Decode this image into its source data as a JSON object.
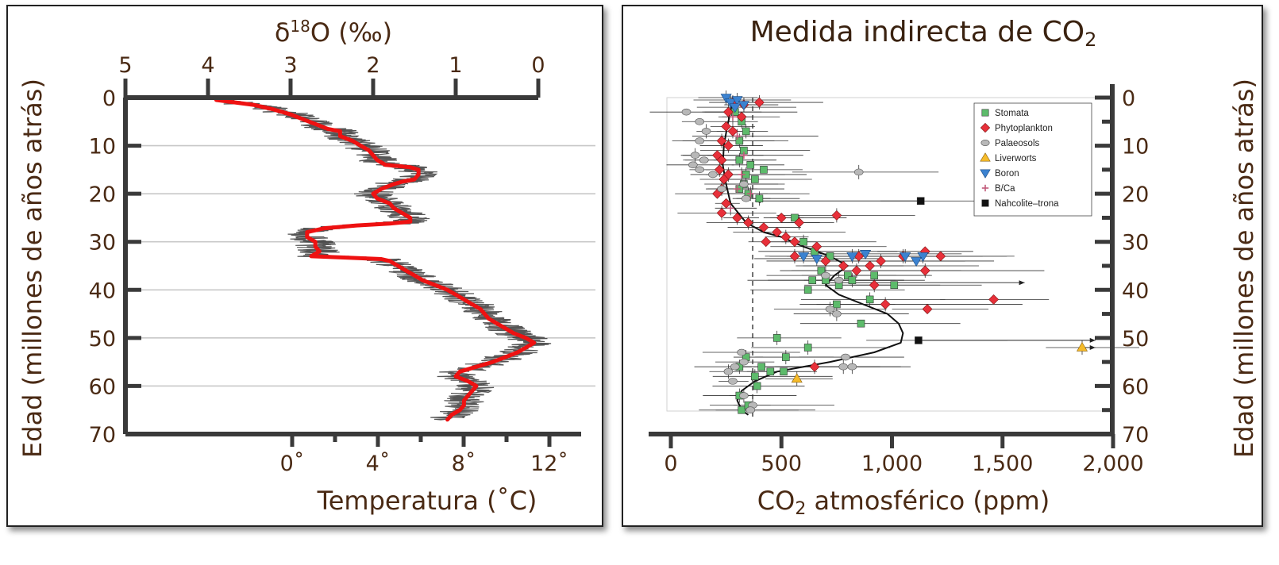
{
  "chart_data": [
    {
      "type": "line",
      "title": "",
      "top_axis": {
        "label": "δ18O (‰)",
        "label_base": "δ",
        "label_sup": "18",
        "label_rest": "O (‰)",
        "ticks": [
          5,
          4,
          3,
          2,
          1,
          0
        ],
        "tick_labels": [
          "5",
          "4",
          "3",
          "2",
          "1",
          "0"
        ],
        "range": [
          5,
          0
        ]
      },
      "bottom_axis": {
        "label": "Temperatura (˚C)",
        "ticks": [
          0,
          4,
          8,
          12
        ],
        "tick_labels": [
          "0˚",
          "4˚",
          "8˚",
          "12˚"
        ],
        "minor_ticks": [
          2,
          6,
          10
        ]
      },
      "y_axis": {
        "label": "Edad (millones de años atrás)",
        "ticks": [
          0,
          10,
          20,
          30,
          40,
          50,
          60,
          70
        ],
        "tick_labels": [
          "0",
          "10",
          "20",
          "30",
          "40",
          "50",
          "60",
          "70"
        ],
        "range": [
          0,
          70
        ],
        "inverted": true
      },
      "grid": "horizontal",
      "series": [
        {
          "color": "#ee1111",
          "note_points": "x = δ18O (‰), y = Edad (Ma), smoothed curve",
          "points": [
            [
              3.9,
              0.5
            ],
            [
              3.45,
              1.5
            ],
            [
              3.2,
              2.5
            ],
            [
              3.0,
              3.5
            ],
            [
              2.85,
              4.5
            ],
            [
              2.7,
              5.5
            ],
            [
              2.55,
              6.5
            ],
            [
              2.4,
              7
            ],
            [
              2.4,
              8
            ],
            [
              2.25,
              9
            ],
            [
              2.15,
              10
            ],
            [
              2.05,
              11
            ],
            [
              2.0,
              12
            ],
            [
              1.95,
              13
            ],
            [
              1.85,
              14
            ],
            [
              1.55,
              14.5
            ],
            [
              1.45,
              15
            ],
            [
              1.45,
              16
            ],
            [
              1.5,
              17
            ],
            [
              1.65,
              17.5
            ],
            [
              1.75,
              18
            ],
            [
              1.9,
              19
            ],
            [
              2.0,
              20
            ],
            [
              1.95,
              21
            ],
            [
              1.8,
              22
            ],
            [
              1.75,
              23
            ],
            [
              1.65,
              24
            ],
            [
              1.55,
              25
            ],
            [
              1.55,
              25.8
            ],
            [
              1.8,
              26.2
            ],
            [
              2.2,
              26.6
            ],
            [
              2.6,
              27.2
            ],
            [
              2.8,
              28
            ],
            [
              2.8,
              29
            ],
            [
              2.7,
              30
            ],
            [
              2.7,
              31
            ],
            [
              2.65,
              32
            ],
            [
              2.75,
              33
            ],
            [
              2.3,
              33.3
            ],
            [
              1.9,
              33.6
            ],
            [
              1.8,
              34
            ],
            [
              1.7,
              35
            ],
            [
              1.6,
              36
            ],
            [
              1.5,
              37
            ],
            [
              1.4,
              38
            ],
            [
              1.25,
              39
            ],
            [
              1.1,
              40
            ],
            [
              1.0,
              41
            ],
            [
              0.9,
              42
            ],
            [
              0.8,
              43
            ],
            [
              0.7,
              44
            ],
            [
              0.65,
              45
            ],
            [
              0.6,
              46
            ],
            [
              0.5,
              47
            ],
            [
              0.4,
              48
            ],
            [
              0.3,
              49
            ],
            [
              0.15,
              50
            ],
            [
              0.05,
              51
            ],
            [
              0.15,
              52
            ],
            [
              0.25,
              53
            ],
            [
              0.4,
              54
            ],
            [
              0.55,
              55
            ],
            [
              0.75,
              56
            ],
            [
              0.95,
              57
            ],
            [
              1.0,
              58
            ],
            [
              0.85,
              59
            ],
            [
              0.75,
              60
            ],
            [
              0.8,
              61
            ],
            [
              0.85,
              62
            ],
            [
              0.9,
              63
            ],
            [
              0.9,
              64
            ],
            [
              0.95,
              65
            ],
            [
              1.05,
              66
            ],
            [
              1.1,
              67
            ]
          ]
        }
      ]
    },
    {
      "type": "scatter",
      "title": "Medida indirecta de CO₂",
      "title_base": "Medida indirecta de CO",
      "title_sub": "2",
      "x_axis": {
        "label": "CO₂ atmosférico (ppm)",
        "label_base": "CO",
        "label_sub": "2",
        "label_rest": " atmosférico (ppm)",
        "ticks": [
          0,
          500,
          1000,
          1500,
          2000
        ],
        "tick_labels": [
          "0",
          "500",
          "1,000",
          "1,500",
          "2,000"
        ],
        "range": [
          0,
          2000
        ]
      },
      "y_axis": {
        "label": "Edad (millones de años atrás)",
        "ticks": [
          0,
          10,
          20,
          30,
          40,
          50,
          60,
          70
        ],
        "tick_labels": [
          "0",
          "10",
          "20",
          "30",
          "40",
          "50",
          "60",
          "70"
        ],
        "range": [
          0,
          70
        ],
        "inverted": true,
        "position": "right"
      },
      "legend_position": "top-right",
      "legend": [
        {
          "name": "Stomata",
          "marker": "square",
          "color": "#5dbb6b"
        },
        {
          "name": "Phytoplankton",
          "marker": "diamond",
          "color": "#e8303a"
        },
        {
          "name": "Palaeosols",
          "marker": "circle",
          "color": "#b8b8b8"
        },
        {
          "name": "Liverworts",
          "marker": "triangle-up",
          "color": "#f5bb2a"
        },
        {
          "name": "Boron",
          "marker": "triangle-down",
          "color": "#3b82d0"
        },
        {
          "name": "B/Ca",
          "marker": "cross",
          "color": "#c25a7a"
        },
        {
          "name": "Nahcolite–trona",
          "marker": "square",
          "color": "#111111"
        }
      ],
      "reference_line": {
        "x": 370,
        "style": "dashed",
        "age_range": [
          0,
          67
        ]
      },
      "smooth_curve": [
        [
          280,
          0
        ],
        [
          270,
          3
        ],
        [
          255,
          6
        ],
        [
          240,
          10
        ],
        [
          235,
          14
        ],
        [
          250,
          18
        ],
        [
          270,
          22
        ],
        [
          340,
          26
        ],
        [
          420,
          28
        ],
        [
          500,
          29
        ],
        [
          600,
          31
        ],
        [
          720,
          33
        ],
        [
          800,
          35
        ],
        [
          740,
          37
        ],
        [
          700,
          39
        ],
        [
          760,
          41
        ],
        [
          870,
          43
        ],
        [
          980,
          45
        ],
        [
          1030,
          47
        ],
        [
          1050,
          49
        ],
        [
          1040,
          51
        ],
        [
          920,
          53
        ],
        [
          720,
          55
        ],
        [
          480,
          57
        ],
        [
          380,
          59
        ],
        [
          320,
          61
        ],
        [
          300,
          63
        ],
        [
          320,
          65
        ],
        [
          350,
          66
        ]
      ],
      "series": [
        {
          "name": "Stomata",
          "points": [
            [
              290,
              3
            ],
            [
              320,
              5
            ],
            [
              340,
              7
            ],
            [
              310,
              9
            ],
            [
              330,
              11
            ],
            [
              310,
              13
            ],
            [
              360,
              14
            ],
            [
              420,
              15
            ],
            [
              340,
              16
            ],
            [
              380,
              17
            ],
            [
              330,
              18
            ],
            [
              310,
              19
            ],
            [
              350,
              20
            ],
            [
              400,
              21
            ],
            [
              560,
              25
            ],
            [
              600,
              30
            ],
            [
              650,
              32
            ],
            [
              720,
              33
            ],
            [
              680,
              36
            ],
            [
              640,
              38
            ],
            [
              700,
              38
            ],
            [
              760,
              39
            ],
            [
              800,
              37
            ],
            [
              820,
              38
            ],
            [
              920,
              37
            ],
            [
              1010,
              39
            ],
            [
              620,
              40
            ],
            [
              750,
              43
            ],
            [
              900,
              42
            ],
            [
              860,
              47
            ],
            [
              480,
              50
            ],
            [
              620,
              52
            ],
            [
              520,
              54
            ],
            [
              340,
              54
            ],
            [
              410,
              56
            ],
            [
              450,
              57
            ],
            [
              310,
              56
            ],
            [
              380,
              58
            ],
            [
              510,
              57
            ],
            [
              390,
              60
            ],
            [
              310,
              62
            ],
            [
              320,
              65
            ],
            [
              350,
              64
            ]
          ]
        },
        {
          "name": "Phytoplankton",
          "points": [
            [
              280,
              1
            ],
            [
              330,
              1.5
            ],
            [
              400,
              1
            ],
            [
              260,
              3
            ],
            [
              320,
              4
            ],
            [
              250,
              6
            ],
            [
              280,
              7
            ],
            [
              230,
              9
            ],
            [
              260,
              10
            ],
            [
              210,
              12
            ],
            [
              230,
              13
            ],
            [
              220,
              15
            ],
            [
              260,
              16
            ],
            [
              240,
              17
            ],
            [
              230,
              19
            ],
            [
              210,
              20
            ],
            [
              250,
              22
            ],
            [
              230,
              24
            ],
            [
              300,
              25
            ],
            [
              350,
              26
            ],
            [
              420,
              27
            ],
            [
              500,
              25
            ],
            [
              580,
              26
            ],
            [
              750,
              24.5
            ],
            [
              480,
              28
            ],
            [
              520,
              29
            ],
            [
              430,
              30
            ],
            [
              560,
              30
            ],
            [
              660,
              31
            ],
            [
              560,
              33
            ],
            [
              700,
              34
            ],
            [
              850,
              33
            ],
            [
              950,
              34
            ],
            [
              1050,
              33
            ],
            [
              1150,
              32
            ],
            [
              1220,
              33
            ],
            [
              780,
              35
            ],
            [
              840,
              36
            ],
            [
              900,
              35
            ],
            [
              1150,
              36
            ],
            [
              920,
              39
            ],
            [
              1460,
              42
            ],
            [
              970,
              43
            ],
            [
              1160,
              44
            ],
            [
              650,
              56
            ]
          ]
        },
        {
          "name": "Palaeosols",
          "points": [
            [
              70,
              3
            ],
            [
              130,
              5
            ],
            [
              160,
              7
            ],
            [
              130,
              9
            ],
            [
              110,
              12
            ],
            [
              150,
              13
            ],
            [
              100,
              14
            ],
            [
              130,
              15
            ],
            [
              190,
              16
            ],
            [
              850,
              15.5
            ],
            [
              230,
              19
            ],
            [
              330,
              18
            ],
            [
              340,
              21
            ],
            [
              700,
              37
            ],
            [
              720,
              44
            ],
            [
              750,
              45
            ],
            [
              760,
              38
            ],
            [
              790,
              54
            ],
            [
              780,
              56
            ],
            [
              820,
              56
            ],
            [
              320,
              53
            ],
            [
              330,
              55
            ],
            [
              290,
              56
            ],
            [
              260,
              57
            ],
            [
              280,
              59
            ],
            [
              330,
              62
            ],
            [
              370,
              64
            ],
            [
              360,
              65
            ]
          ]
        },
        {
          "name": "Liverworts",
          "points": [
            [
              570,
              58.5
            ],
            [
              1860,
              52
            ]
          ]
        },
        {
          "name": "Boron",
          "points": [
            [
              250,
              0
            ],
            [
              270,
              1
            ],
            [
              300,
              0.5
            ],
            [
              290,
              2
            ],
            [
              330,
              1.5
            ],
            [
              600,
              33
            ],
            [
              660,
              33.5
            ],
            [
              820,
              33
            ],
            [
              880,
              32.5
            ],
            [
              1060,
              33
            ],
            [
              1140,
              33
            ],
            [
              1110,
              34
            ]
          ]
        },
        {
          "name": "B/Ca",
          "points": [
            [
              280,
              4
            ],
            [
              300,
              8
            ],
            [
              330,
              12
            ],
            [
              320,
              16
            ],
            [
              360,
              20
            ],
            [
              300,
              19
            ],
            [
              270,
              23
            ]
          ]
        },
        {
          "name": "Nahcolite–trona",
          "points": [
            [
              1130,
              21.5
            ],
            [
              1120,
              50.5
            ]
          ]
        }
      ]
    }
  ],
  "colors": {
    "axis": "#3a3a3a",
    "text": "#4a2a14",
    "red_curve": "#ee1111",
    "raw_data": "#2a2a2a"
  }
}
